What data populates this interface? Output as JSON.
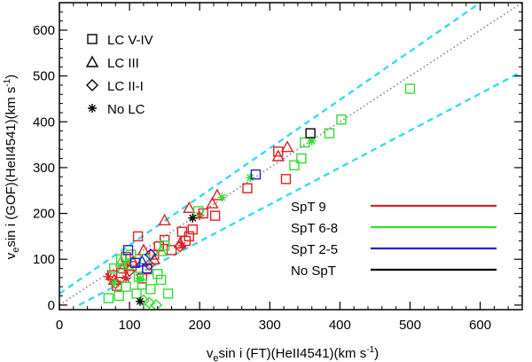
{
  "chart_data": {
    "type": "scatter",
    "xlabel": "v",
    "xlabel_sub": "e",
    "xlabel_rest": "sin i (FT)(HeII4541)(km s",
    "xlabel_sup": "-1",
    "xlabel_end": ")",
    "ylabel": "v",
    "ylabel_sub": "e",
    "ylabel_rest": "sin i (GOF)(HeII4541)(km s",
    "ylabel_sup": "-1",
    "ylabel_end": ")",
    "xlim": [
      0,
      660
    ],
    "ylim": [
      -10,
      660
    ],
    "xticks": [
      0,
      100,
      200,
      300,
      400,
      500,
      600
    ],
    "yticks": [
      0,
      100,
      200,
      300,
      400,
      500,
      600
    ],
    "reference_lines": [
      {
        "name": "one-to-one",
        "style": "dotted",
        "color": "#808080",
        "points": [
          [
            0,
            0
          ],
          [
            660,
            660
          ]
        ]
      },
      {
        "name": "upper-bound",
        "style": "dashed",
        "color": "#33ddee",
        "points": [
          [
            0,
            25
          ],
          [
            660,
            723
          ]
        ]
      },
      {
        "name": "lower-bound",
        "style": "dashed",
        "color": "#33ddee",
        "points": [
          [
            28,
            0
          ],
          [
            660,
            510
          ]
        ]
      }
    ],
    "marker_legend": [
      {
        "symbol": "square",
        "label": "LC V-IV"
      },
      {
        "symbol": "triangle",
        "label": "LC III"
      },
      {
        "symbol": "diamond",
        "label": "LC II-I"
      },
      {
        "symbol": "asterisk",
        "label": "No LC"
      }
    ],
    "color_legend": [
      {
        "label": "SpT 9",
        "color": "#dd2222"
      },
      {
        "label": "SpT 6-8",
        "color": "#33dd33"
      },
      {
        "label": "SpT 2-5",
        "color": "#2222cc"
      },
      {
        "label": "No SpT",
        "color": "#000000"
      }
    ],
    "series": [
      {
        "name": "SpT 9",
        "color": "#dd2222",
        "points": [
          {
            "x": 75,
            "y": 65,
            "m": "square"
          },
          {
            "x": 82,
            "y": 42,
            "m": "square"
          },
          {
            "x": 88,
            "y": 70,
            "m": "square"
          },
          {
            "x": 95,
            "y": 105,
            "m": "square"
          },
          {
            "x": 103,
            "y": 85,
            "m": "square"
          },
          {
            "x": 112,
            "y": 150,
            "m": "square"
          },
          {
            "x": 118,
            "y": 58,
            "m": "square"
          },
          {
            "x": 125,
            "y": 78,
            "m": "square"
          },
          {
            "x": 135,
            "y": 110,
            "m": "square"
          },
          {
            "x": 142,
            "y": 128,
            "m": "square"
          },
          {
            "x": 150,
            "y": 142,
            "m": "square"
          },
          {
            "x": 160,
            "y": 120,
            "m": "square"
          },
          {
            "x": 175,
            "y": 160,
            "m": "square"
          },
          {
            "x": 180,
            "y": 140,
            "m": "square"
          },
          {
            "x": 185,
            "y": 150,
            "m": "square"
          },
          {
            "x": 190,
            "y": 165,
            "m": "square"
          },
          {
            "x": 205,
            "y": 200,
            "m": "square"
          },
          {
            "x": 222,
            "y": 195,
            "m": "square"
          },
          {
            "x": 268,
            "y": 255,
            "m": "square"
          },
          {
            "x": 312,
            "y": 335,
            "m": "square"
          },
          {
            "x": 323,
            "y": 275,
            "m": "square"
          },
          {
            "x": 78,
            "y": 55,
            "m": "triangle"
          },
          {
            "x": 90,
            "y": 80,
            "m": "triangle"
          },
          {
            "x": 105,
            "y": 95,
            "m": "triangle"
          },
          {
            "x": 120,
            "y": 120,
            "m": "triangle"
          },
          {
            "x": 135,
            "y": 100,
            "m": "triangle"
          },
          {
            "x": 150,
            "y": 185,
            "m": "triangle"
          },
          {
            "x": 172,
            "y": 135,
            "m": "triangle"
          },
          {
            "x": 185,
            "y": 212,
            "m": "triangle"
          },
          {
            "x": 218,
            "y": 222,
            "m": "triangle"
          },
          {
            "x": 225,
            "y": 240,
            "m": "triangle"
          },
          {
            "x": 312,
            "y": 325,
            "m": "triangle"
          },
          {
            "x": 325,
            "y": 345,
            "m": "triangle"
          },
          {
            "x": 80,
            "y": 48,
            "m": "diamond"
          },
          {
            "x": 100,
            "y": 75,
            "m": "diamond"
          },
          {
            "x": 128,
            "y": 88,
            "m": "diamond"
          },
          {
            "x": 172,
            "y": 128,
            "m": "diamond"
          },
          {
            "x": 70,
            "y": 62,
            "m": "asterisk"
          },
          {
            "x": 95,
            "y": 58,
            "m": "asterisk"
          },
          {
            "x": 175,
            "y": 130,
            "m": "asterisk"
          },
          {
            "x": 200,
            "y": 195,
            "m": "asterisk"
          }
        ]
      },
      {
        "name": "SpT 6-8",
        "color": "#33dd33",
        "points": [
          {
            "x": 70,
            "y": 15,
            "m": "square"
          },
          {
            "x": 78,
            "y": 80,
            "m": "square"
          },
          {
            "x": 85,
            "y": 20,
            "m": "square"
          },
          {
            "x": 88,
            "y": 100,
            "m": "square"
          },
          {
            "x": 95,
            "y": 40,
            "m": "square"
          },
          {
            "x": 102,
            "y": 110,
            "m": "square"
          },
          {
            "x": 110,
            "y": 25,
            "m": "square"
          },
          {
            "x": 113,
            "y": 62,
            "m": "square"
          },
          {
            "x": 118,
            "y": 45,
            "m": "square"
          },
          {
            "x": 122,
            "y": 100,
            "m": "square"
          },
          {
            "x": 130,
            "y": 35,
            "m": "square"
          },
          {
            "x": 140,
            "y": 68,
            "m": "square"
          },
          {
            "x": 145,
            "y": 55,
            "m": "square"
          },
          {
            "x": 150,
            "y": 130,
            "m": "square"
          },
          {
            "x": 155,
            "y": 25,
            "m": "square"
          },
          {
            "x": 198,
            "y": 205,
            "m": "square"
          },
          {
            "x": 335,
            "y": 305,
            "m": "square"
          },
          {
            "x": 345,
            "y": 320,
            "m": "square"
          },
          {
            "x": 350,
            "y": 355,
            "m": "square"
          },
          {
            "x": 385,
            "y": 375,
            "m": "square"
          },
          {
            "x": 402,
            "y": 405,
            "m": "square"
          },
          {
            "x": 500,
            "y": 472,
            "m": "square"
          },
          {
            "x": 88,
            "y": 95,
            "m": "triangle"
          },
          {
            "x": 98,
            "y": 88,
            "m": "triangle"
          },
          {
            "x": 145,
            "y": 118,
            "m": "triangle"
          },
          {
            "x": 120,
            "y": 10,
            "m": "diamond"
          },
          {
            "x": 128,
            "y": 5,
            "m": "diamond"
          },
          {
            "x": 138,
            "y": 0,
            "m": "diamond"
          },
          {
            "x": 78,
            "y": 48,
            "m": "asterisk"
          },
          {
            "x": 115,
            "y": 58,
            "m": "asterisk"
          },
          {
            "x": 232,
            "y": 235,
            "m": "asterisk"
          },
          {
            "x": 272,
            "y": 278,
            "m": "asterisk"
          },
          {
            "x": 360,
            "y": 358,
            "m": "asterisk"
          }
        ]
      },
      {
        "name": "SpT 2-5",
        "color": "#2222cc",
        "points": [
          {
            "x": 98,
            "y": 120,
            "m": "square"
          },
          {
            "x": 108,
            "y": 92,
            "m": "square"
          },
          {
            "x": 125,
            "y": 80,
            "m": "square"
          },
          {
            "x": 280,
            "y": 285,
            "m": "square"
          },
          {
            "x": 118,
            "y": 95,
            "m": "triangle"
          },
          {
            "x": 130,
            "y": 110,
            "m": "diamond"
          }
        ]
      },
      {
        "name": "No SpT",
        "color": "#000000",
        "points": [
          {
            "x": 358,
            "y": 375,
            "m": "square"
          },
          {
            "x": 115,
            "y": 8,
            "m": "asterisk"
          },
          {
            "x": 190,
            "y": 190,
            "m": "asterisk"
          }
        ]
      }
    ]
  }
}
